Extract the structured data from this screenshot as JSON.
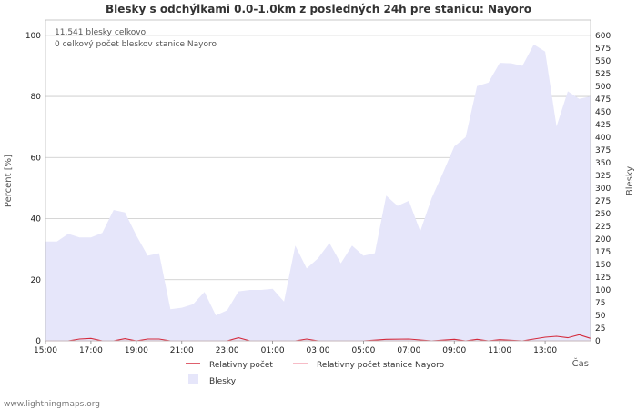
{
  "chart_data": {
    "type": "area",
    "title": "Blesky s odchýlkami 0.0-1.0km z posledných 24h pre stanicu: Nayoro",
    "xlabel": "Čas",
    "ylabel_left": "Percent   [%]",
    "ylabel_right": "Blesky",
    "ylim_left": [
      0,
      105
    ],
    "ylim_right": [
      0,
      630
    ],
    "y_ticks_left": [
      "0",
      "20",
      "40",
      "60",
      "80",
      "100"
    ],
    "y_ticks_right": [
      "0",
      "25",
      "50",
      "75",
      "100",
      "125",
      "150",
      "175",
      "200",
      "225",
      "250",
      "275",
      "300",
      "325",
      "350",
      "375",
      "400",
      "425",
      "450",
      "475",
      "500",
      "525",
      "550",
      "575",
      "600"
    ],
    "x_tick_labels": [
      "15:00",
      "17:00",
      "19:00",
      "21:00",
      "23:00",
      "01:00",
      "03:00",
      "05:00",
      "07:00",
      "09:00",
      "11:00",
      "13:00"
    ],
    "annotations": [
      "11,541 blesky celkovo",
      "0 celkový počet bleskov stanice Nayoro"
    ],
    "series": [
      {
        "name": "Blesky",
        "axis": "right",
        "color": "#e6e6fa",
        "x_hours": [
          0,
          0.5,
          1,
          1.5,
          2,
          2.5,
          3,
          3.5,
          4,
          4.5,
          5,
          5.5,
          6,
          6.5,
          7,
          7.5,
          8,
          8.5,
          9,
          9.5,
          10,
          10.5,
          11,
          11.5,
          12,
          12.5,
          13,
          13.5,
          14,
          14.5,
          15,
          15.5,
          16,
          16.5,
          17,
          17.5,
          18,
          18.5,
          19,
          19.5,
          20,
          20.5,
          21,
          21.5,
          22,
          22.5,
          23,
          23.5,
          24
        ],
        "values": [
          195,
          195,
          210,
          203,
          203,
          212,
          257,
          252,
          207,
          167,
          172,
          62,
          65,
          72,
          96,
          50,
          60,
          97,
          100,
          100,
          102,
          77,
          187,
          142,
          162,
          192,
          152,
          187,
          167,
          172,
          285,
          265,
          275,
          215,
          280,
          330,
          382,
          400,
          500,
          507,
          546,
          545,
          540,
          582,
          568,
          421,
          490,
          475,
          480
        ]
      },
      {
        "name": "Relativny počet",
        "axis": "left",
        "color": "#d42a3c",
        "x_hours": [
          0,
          1,
          1.5,
          2,
          2.5,
          3,
          3.5,
          4,
          4.5,
          5,
          5.5,
          6,
          7,
          8,
          8.5,
          9,
          10,
          11,
          11.5,
          12,
          13,
          14,
          15,
          16,
          17,
          18,
          18.5,
          19,
          19.5,
          20,
          21,
          22,
          22.5,
          23,
          23.5,
          24
        ],
        "values": [
          0,
          0,
          0.6,
          0.8,
          0,
          0,
          0.7,
          0,
          0.6,
          0.6,
          0,
          0,
          0,
          0,
          1.0,
          0,
          0,
          0,
          0.6,
          0,
          0,
          0,
          0.5,
          0.6,
          0,
          0.5,
          0,
          0.5,
          0,
          0.4,
          0,
          1.2,
          1.5,
          1.0,
          2.0,
          0.8
        ]
      },
      {
        "name": "Relativny počet stanice Nayoro",
        "axis": "left",
        "color": "#f4a6b4",
        "x_hours": [
          0,
          24
        ],
        "values": [
          0,
          0
        ]
      }
    ]
  },
  "legend": {
    "rel": "Relativny počet",
    "rel_station": "Relativny počet stanice Nayoro",
    "blesky": "Blesky"
  },
  "footer": "www.lightningmaps.org"
}
